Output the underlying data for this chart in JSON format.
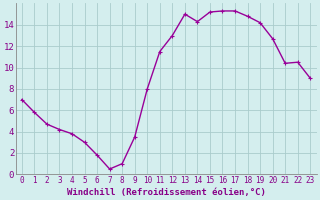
{
  "x": [
    0,
    1,
    2,
    3,
    4,
    5,
    6,
    7,
    8,
    9,
    10,
    11,
    12,
    13,
    14,
    15,
    16,
    17,
    18,
    19,
    20,
    21,
    22,
    23
  ],
  "y": [
    7.0,
    5.8,
    4.7,
    4.2,
    3.8,
    3.0,
    1.8,
    0.5,
    1.0,
    3.5,
    8.0,
    11.5,
    13.0,
    15.0,
    14.3,
    15.2,
    15.3,
    15.3,
    14.8,
    14.2,
    12.7,
    10.4,
    10.5,
    9.0
  ],
  "line_color": "#990099",
  "marker": "+",
  "marker_size": 3,
  "linewidth": 1.0,
  "xlim_min": -0.5,
  "xlim_max": 23.5,
  "ylim_min": 0,
  "ylim_max": 16,
  "yticks": [
    0,
    2,
    4,
    6,
    8,
    10,
    12,
    14
  ],
  "xticks": [
    0,
    1,
    2,
    3,
    4,
    5,
    6,
    7,
    8,
    9,
    10,
    11,
    12,
    13,
    14,
    15,
    16,
    17,
    18,
    19,
    20,
    21,
    22,
    23
  ],
  "xlabel": "Windchill (Refroidissement éolien,°C)",
  "bg_color": "#d4eeee",
  "grid_color": "#aacccc",
  "label_color": "#880088",
  "xlabel_fontsize": 6.5,
  "tick_fontsize": 5.5,
  "ytick_fontsize": 6.5,
  "figwidth": 3.2,
  "figheight": 2.0,
  "dpi": 100
}
